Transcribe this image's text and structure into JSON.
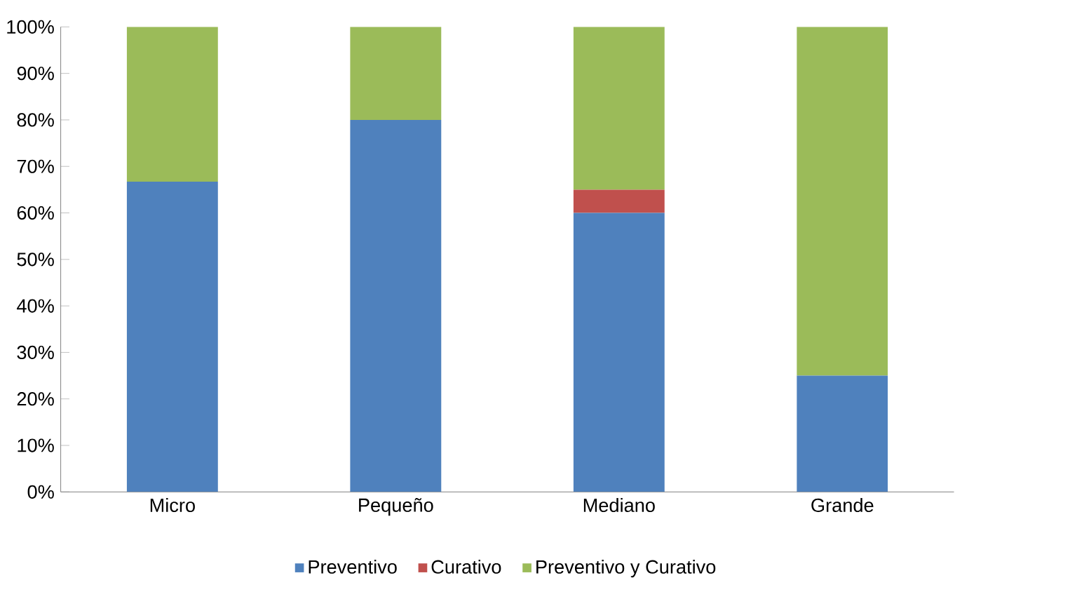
{
  "chart_data": {
    "type": "bar",
    "stacked": true,
    "categories": [
      "Micro",
      "Pequeño",
      "Mediano",
      "Grande"
    ],
    "series": [
      {
        "name": "Preventivo",
        "color": "#4f81bd",
        "values": [
          66.7,
          80,
          60,
          25
        ]
      },
      {
        "name": "Curativo",
        "color": "#c0504d",
        "values": [
          0,
          0,
          5,
          0
        ]
      },
      {
        "name": "Preventivo y Curativo",
        "color": "#9bbb59",
        "values": [
          33.3,
          20,
          35,
          75
        ]
      }
    ],
    "ylim": [
      0,
      100
    ],
    "yticks": [
      {
        "value": 0,
        "label": "0%"
      },
      {
        "value": 10,
        "label": "10%"
      },
      {
        "value": 20,
        "label": "20%"
      },
      {
        "value": 30,
        "label": "30%"
      },
      {
        "value": 40,
        "label": "40%"
      },
      {
        "value": 50,
        "label": "50%"
      },
      {
        "value": 60,
        "label": "60%"
      },
      {
        "value": 70,
        "label": "70%"
      },
      {
        "value": 80,
        "label": "80%"
      },
      {
        "value": 90,
        "label": "90%"
      },
      {
        "value": 100,
        "label": "100%"
      }
    ],
    "grid": false,
    "legend": "bottom"
  }
}
